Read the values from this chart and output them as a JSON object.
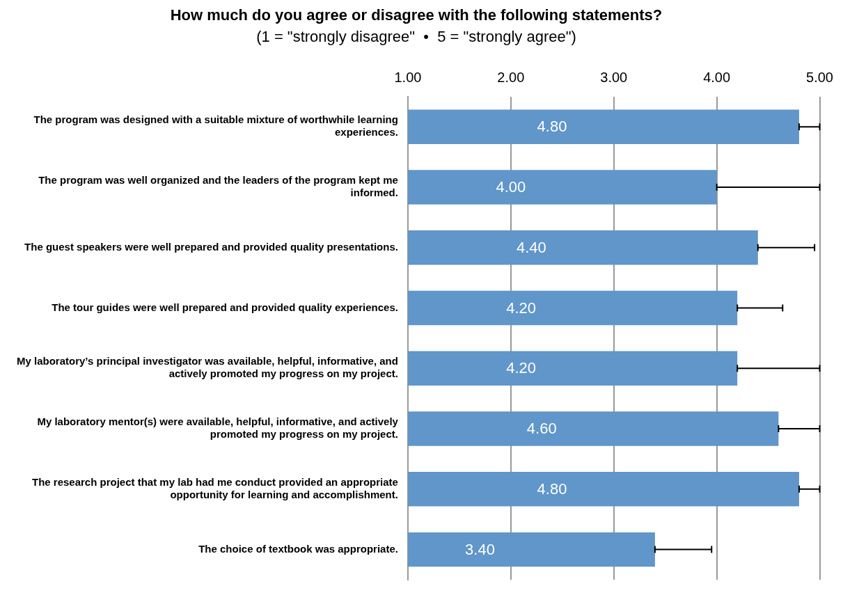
{
  "chart_data": {
    "type": "bar",
    "orientation": "horizontal",
    "title": "How much do you agree or disagree with the following statements?",
    "subtitle": "(1 = \"strongly disagree\"  •  5 = \"strongly agree\")",
    "categories": [
      "The program was designed with a suitable mixture of worthwhile learning experiences.",
      "The program was well organized and the leaders of the program kept me informed.",
      "The guest speakers were well prepared and provided quality presentations.",
      "The tour guides were well prepared and provided quality experiences.",
      "My laboratory’s principal investigator was available, helpful, informative, and actively promoted my progress on my project.",
      "My laboratory mentor(s) were available, helpful, informative, and actively promoted my progress on my project.",
      "The research project that my lab had me conduct provided an appropriate opportunity for learning and accomplishment.",
      "The choice of textbook was appropriate."
    ],
    "values": [
      4.8,
      4.0,
      4.4,
      4.2,
      4.2,
      4.6,
      4.8,
      3.4
    ],
    "errors": [
      [
        4.8,
        5.0
      ],
      [
        4.0,
        5.0
      ],
      [
        4.4,
        4.95
      ],
      [
        4.2,
        4.64
      ],
      [
        4.2,
        5.0
      ],
      [
        4.6,
        5.0
      ],
      [
        4.8,
        5.0
      ],
      [
        3.4,
        3.95
      ]
    ],
    "value_labels": [
      "4.80",
      "4.00",
      "4.40",
      "4.20",
      "4.20",
      "4.60",
      "4.80",
      "3.40"
    ],
    "color": "#6096c9",
    "xlim": [
      1,
      5
    ],
    "xticks": [
      {
        "value": 1,
        "label": "1.00"
      },
      {
        "value": 2,
        "label": "2.00"
      },
      {
        "value": 3,
        "label": "3.00"
      },
      {
        "value": 4,
        "label": "4.00"
      },
      {
        "value": 5,
        "label": "5.00"
      }
    ],
    "grid": "x",
    "legend": false
  }
}
